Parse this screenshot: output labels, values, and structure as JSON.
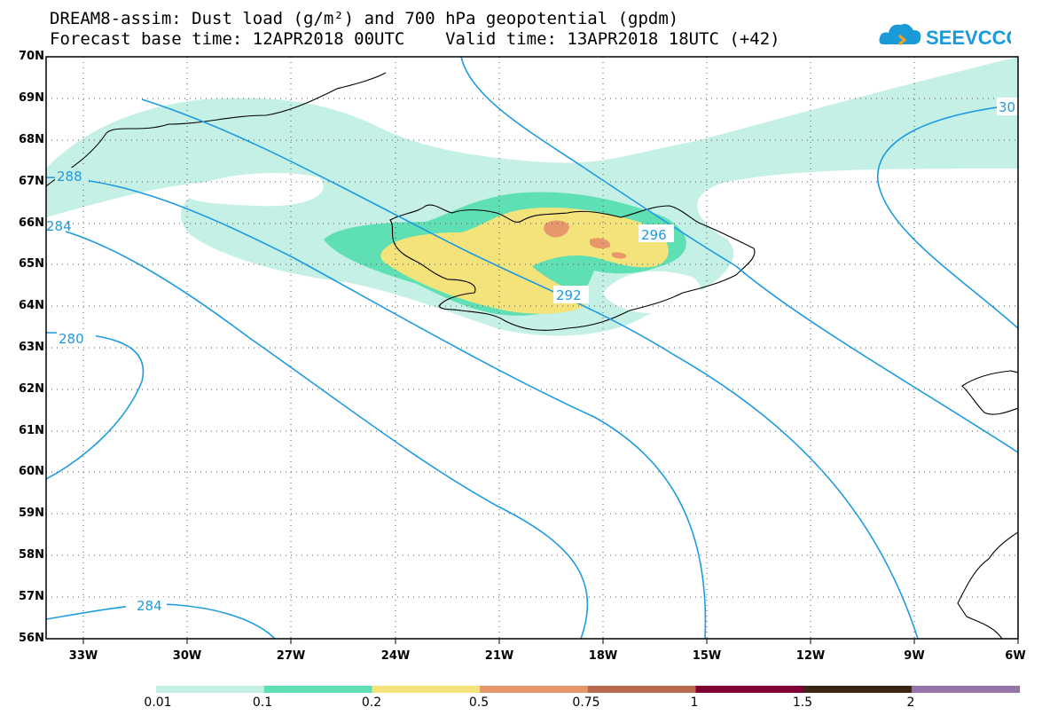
{
  "header": {
    "line1": "DREAM8-assim: Dust load (g/m²) and 700 hPa geopotential (gpdm)",
    "line2": "Forecast base time: 12APR2018 00UTC    Valid time: 13APR2018 18UTC (+42)"
  },
  "logo": {
    "text": "SEEVCCC",
    "icon": "cloud-logo-icon",
    "color": "#1a9bd8"
  },
  "map": {
    "lat_labels": [
      "70N",
      "69N",
      "68N",
      "67N",
      "66N",
      "65N",
      "64N",
      "63N",
      "62N",
      "61N",
      "60N",
      "59N",
      "58N",
      "57N",
      "56N"
    ],
    "lon_labels": [
      "33W",
      "30W",
      "27W",
      "24W",
      "21W",
      "18W",
      "15W",
      "12W",
      "9W",
      "6W"
    ],
    "contour_labels": [
      "288",
      "284",
      "280",
      "284",
      "292",
      "296",
      "30"
    ],
    "contour_color": "#1e9be0"
  },
  "colorbar": {
    "labels": [
      "0.01",
      "0.1",
      "0.2",
      "0.5",
      "0.75",
      "1",
      "1.5",
      "2"
    ],
    "colors": [
      "#c4f0e6",
      "#5fe0b4",
      "#f4e27a",
      "#e8976c",
      "#b86a4e",
      "#800033",
      "#3a2514",
      "#9575a8"
    ]
  }
}
